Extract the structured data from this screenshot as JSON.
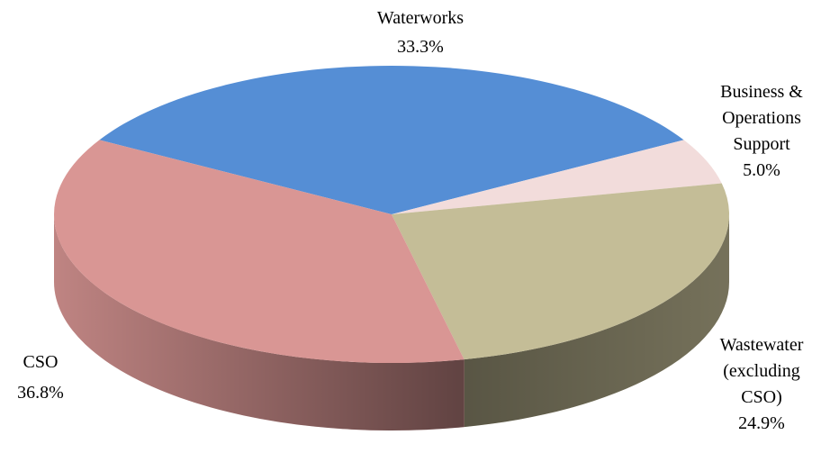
{
  "chart_data": {
    "type": "pie",
    "categories": [
      "Waterworks",
      "Business & Operations Support",
      "Wastewater (excluding CSO)",
      "CSO"
    ],
    "values": [
      33.3,
      5.0,
      24.9,
      36.8
    ],
    "value_labels": [
      "33.3%",
      "5.0%",
      "24.9%",
      "36.8%"
    ],
    "colors": [
      "#558ed5",
      "#f2dcdb",
      "#c4bd97",
      "#d99694"
    ],
    "three_d": true
  }
}
